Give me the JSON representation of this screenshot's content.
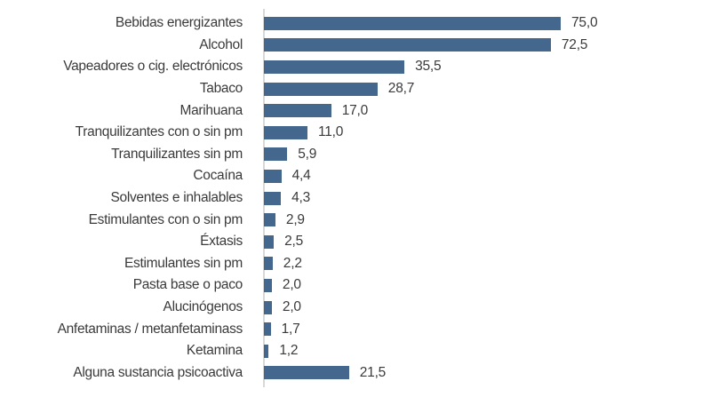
{
  "chart_data": {
    "type": "bar",
    "orientation": "horizontal",
    "title": "",
    "xlabel": "",
    "ylabel": "",
    "xlim": [
      0,
      75
    ],
    "grid": false,
    "legend": false,
    "bar_color": "#44678d",
    "axis_line_color": "#d8d8d8",
    "text_color": "#3a3a3a",
    "categories": [
      "Bebidas energizantes",
      "Alcohol",
      "Vapeadores o cig. electrónicos",
      "Tabaco",
      "Marihuana",
      "Tranquilizantes con o sin pm",
      "Tranquilizantes sin pm",
      "Cocaína",
      "Solventes e inhalables",
      "Estimulantes con o sin pm",
      "Éxtasis",
      "Estimulantes sin pm",
      "Pasta base o paco",
      "Alucinógenos",
      "Anfetaminas / metanfetaminass",
      "Ketamina",
      "Alguna sustancia psicoactiva"
    ],
    "values": [
      75.0,
      72.5,
      35.5,
      28.7,
      17.0,
      11.0,
      5.9,
      4.4,
      4.3,
      2.9,
      2.5,
      2.2,
      2.0,
      2.0,
      1.7,
      1.2,
      21.5
    ],
    "value_labels": [
      "75,0",
      "72,5",
      "35,5",
      "28,7",
      "17,0",
      "11,0",
      "5,9",
      "4,4",
      "4,3",
      "2,9",
      "2,5",
      "2,2",
      "2,0",
      "2,0",
      "1,7",
      "1,2",
      "21,5"
    ]
  }
}
